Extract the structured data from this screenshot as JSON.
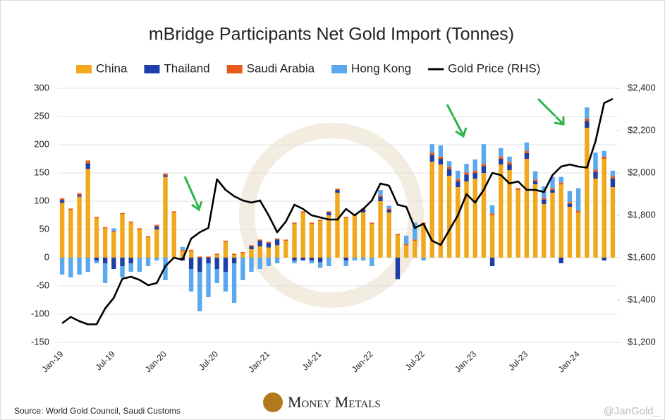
{
  "chart_data": {
    "type": "bar",
    "title": "mBridge Participants Net Gold Import (Tonnes)",
    "source": "Source: World Gold Council, Saudi Customs",
    "brand": "Money Metals",
    "credit": "@JanGold_",
    "categories": [
      "Jan-19",
      null,
      null,
      null,
      null,
      null,
      "Jul-19",
      null,
      null,
      null,
      null,
      null,
      "Jan-20",
      null,
      null,
      null,
      null,
      null,
      "Jul-20",
      null,
      null,
      null,
      null,
      null,
      "Jan-21",
      null,
      null,
      null,
      null,
      null,
      "Jul-21",
      null,
      null,
      null,
      null,
      null,
      "Jan-22",
      null,
      null,
      null,
      null,
      null,
      "Jul-22",
      null,
      null,
      null,
      null,
      null,
      "Jan-23",
      null,
      null,
      null,
      null,
      null,
      "Jul-23",
      null,
      null,
      null,
      null,
      null,
      "Jan-24",
      null,
      null,
      null,
      null
    ],
    "series": [
      {
        "name": "China",
        "color": "#f0a81c",
        "values": [
          97,
          85,
          108,
          157,
          70,
          52,
          45,
          77,
          62,
          50,
          36,
          50,
          143,
          80,
          12,
          12,
          0,
          0,
          5,
          28,
          5,
          8,
          15,
          20,
          18,
          22,
          30,
          60,
          80,
          60,
          65,
          75,
          115,
          70,
          75,
          80,
          60,
          100,
          80,
          40,
          22,
          30,
          60,
          170,
          165,
          145,
          125,
          135,
          140,
          150,
          75,
          165,
          155,
          120,
          175,
          130,
          95,
          115,
          130,
          90,
          80,
          230,
          140,
          175,
          125
        ]
      },
      {
        "name": "Thailand",
        "color": "#1f3fa8",
        "values": [
          5,
          0,
          3,
          10,
          -5,
          -10,
          -20,
          -15,
          -10,
          0,
          0,
          5,
          3,
          0,
          -5,
          -20,
          -25,
          -10,
          -20,
          -25,
          -10,
          0,
          5,
          10,
          8,
          10,
          0,
          -5,
          -5,
          -5,
          -8,
          5,
          5,
          -5,
          0,
          5,
          0,
          8,
          5,
          -38,
          0,
          0,
          0,
          12,
          10,
          12,
          10,
          12,
          10,
          12,
          -15,
          10,
          10,
          0,
          10,
          5,
          8,
          5,
          -10,
          5,
          0,
          12,
          12,
          -5,
          15
        ]
      },
      {
        "name": "Saudi Arabia",
        "color": "#e8591a",
        "values": [
          3,
          2,
          3,
          5,
          2,
          2,
          2,
          2,
          2,
          2,
          2,
          3,
          3,
          2,
          2,
          2,
          2,
          2,
          2,
          2,
          2,
          2,
          2,
          2,
          2,
          2,
          2,
          2,
          2,
          2,
          2,
          2,
          2,
          2,
          2,
          2,
          2,
          2,
          2,
          2,
          2,
          2,
          2,
          4,
          4,
          4,
          4,
          4,
          4,
          4,
          3,
          4,
          4,
          3,
          4,
          3,
          3,
          3,
          3,
          3,
          3,
          4,
          4,
          4,
          4
        ]
      },
      {
        "name": "Hong Kong",
        "color": "#5aa8ee",
        "values": [
          -30,
          -35,
          -30,
          -25,
          -5,
          -35,
          5,
          -20,
          -15,
          -25,
          -15,
          -5,
          -40,
          0,
          5,
          -40,
          -70,
          -60,
          -25,
          -35,
          -70,
          -40,
          -25,
          -20,
          -15,
          -10,
          0,
          -5,
          0,
          -5,
          -10,
          -15,
          0,
          -10,
          -5,
          -5,
          -15,
          10,
          5,
          0,
          15,
          30,
          -5,
          15,
          20,
          10,
          15,
          15,
          20,
          35,
          15,
          15,
          10,
          0,
          15,
          15,
          20,
          20,
          10,
          20,
          40,
          20,
          30,
          10,
          10
        ]
      },
      {
        "name": "Gold Price (RHS)",
        "color": "#000000",
        "axis": "y2",
        "type": "line",
        "values": [
          1290,
          1320,
          1300,
          1285,
          1285,
          1360,
          1410,
          1500,
          1510,
          1495,
          1470,
          1480,
          1560,
          1600,
          1590,
          1690,
          1720,
          1740,
          1970,
          1920,
          1890,
          1870,
          1860,
          1870,
          1800,
          1720,
          1770,
          1850,
          1830,
          1800,
          1790,
          1780,
          1780,
          1830,
          1800,
          1830,
          1870,
          1950,
          1940,
          1850,
          1840,
          1740,
          1760,
          1680,
          1660,
          1730,
          1800,
          1900,
          1860,
          1920,
          2000,
          1990,
          1950,
          1960,
          1920,
          1920,
          1910,
          1990,
          2030,
          2040,
          2030,
          2025,
          2150,
          2330,
          2350
        ]
      }
    ],
    "ylim": [
      -150,
      300
    ],
    "yticks": [
      -150,
      -100,
      -50,
      0,
      50,
      100,
      150,
      200,
      250,
      300
    ],
    "y2lim": [
      1200,
      2400
    ],
    "y2ticks": [
      {
        "value": 1200,
        "label": "$1,200"
      },
      {
        "value": 1400,
        "label": "$1,400"
      },
      {
        "value": 1600,
        "label": "$1,600"
      },
      {
        "value": 1800,
        "label": "$1,800"
      },
      {
        "value": 2000,
        "label": "$2,000"
      },
      {
        "value": 2200,
        "label": "$2,200"
      },
      {
        "value": 2400,
        "label": "$2,400"
      }
    ],
    "grid": true,
    "legend": "top"
  }
}
